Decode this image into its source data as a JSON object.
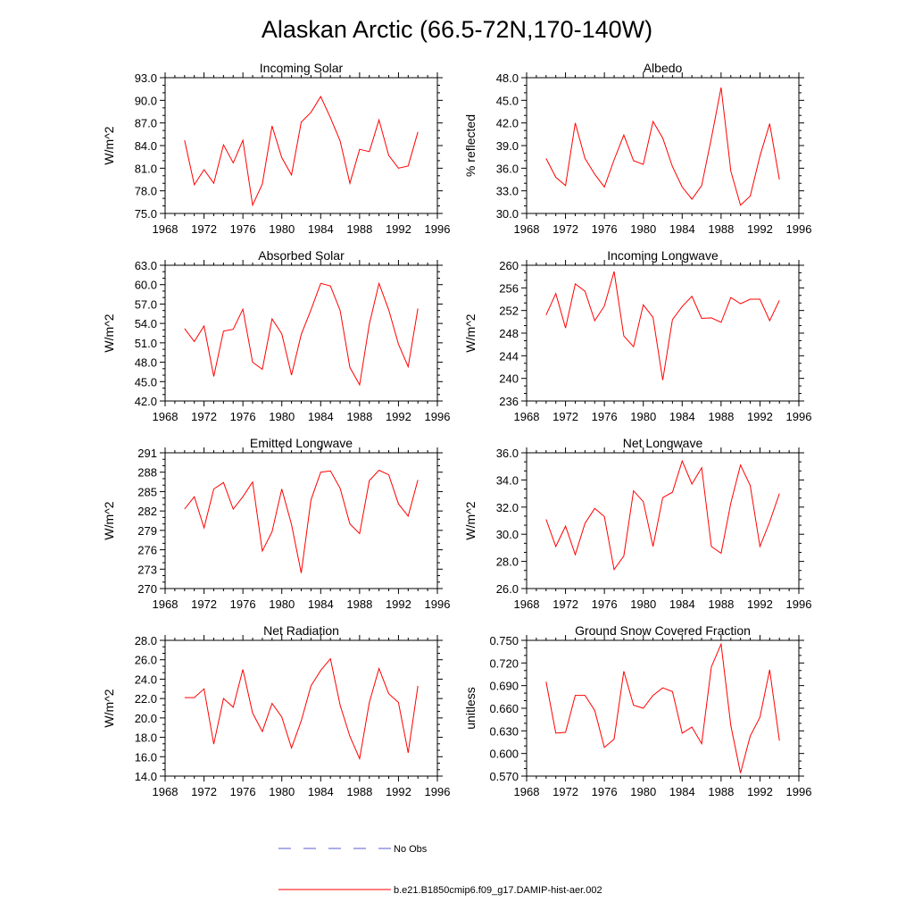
{
  "title": "Alaskan Arctic (66.5-72N,170-140W)",
  "legend": {
    "no_obs_label": "No Obs",
    "model_label": "b.e21.B1850cmip6.f09_g17.DAMIP-hist-aer.002",
    "no_obs_color": "#5b5bd6",
    "model_color": "#ff0000"
  },
  "chart_data": [
    {
      "type": "line",
      "title": "Incoming Solar",
      "ylabel": "W/m^2",
      "xlim": [
        1968,
        1996
      ],
      "ylim": [
        75,
        93
      ],
      "xticks": [
        "1968",
        "1972",
        "1976",
        "1980",
        "1984",
        "1988",
        "1992",
        "1996"
      ],
      "yticks": [
        "75.0",
        "78.0",
        "81.0",
        "84.0",
        "87.0",
        "90.0",
        "93.0"
      ],
      "x": [
        1970,
        1971,
        1972,
        1973,
        1974,
        1975,
        1976,
        1977,
        1978,
        1979,
        1980,
        1981,
        1982,
        1983,
        1984,
        1985,
        1986,
        1987,
        1988,
        1989,
        1990,
        1991,
        1992,
        1993,
        1994
      ],
      "series": [
        {
          "values": [
            84.7,
            78.8,
            80.8,
            79.0,
            84.1,
            81.7,
            84.7,
            76.1,
            78.9,
            86.6,
            82.4,
            80.1,
            87.1,
            88.4,
            90.5,
            87.7,
            84.6,
            79.0,
            83.5,
            83.2,
            87.4,
            82.7,
            81.0,
            81.3,
            85.8
          ]
        }
      ]
    },
    {
      "type": "line",
      "title": "Albedo",
      "ylabel": "% reflected",
      "xlim": [
        1968,
        1996
      ],
      "ylim": [
        30,
        48
      ],
      "xticks": [
        "1968",
        "1972",
        "1976",
        "1980",
        "1984",
        "1988",
        "1992",
        "1996"
      ],
      "yticks": [
        "30.0",
        "33.0",
        "36.0",
        "39.0",
        "42.0",
        "45.0",
        "48.0"
      ],
      "x": [
        1970,
        1971,
        1972,
        1973,
        1974,
        1975,
        1976,
        1977,
        1978,
        1979,
        1980,
        1981,
        1982,
        1983,
        1984,
        1985,
        1986,
        1987,
        1988,
        1989,
        1990,
        1991,
        1992,
        1993,
        1994
      ],
      "series": [
        {
          "values": [
            37.3,
            34.8,
            33.7,
            42.0,
            37.3,
            35.2,
            33.5,
            37.1,
            40.4,
            37.0,
            36.5,
            42.2,
            40.0,
            36.2,
            33.5,
            31.9,
            33.7,
            40.0,
            46.7,
            35.6,
            31.1,
            32.3,
            37.6,
            41.9,
            34.5
          ]
        }
      ]
    },
    {
      "type": "line",
      "title": "Absorbed Solar",
      "ylabel": "W/m^2",
      "xlim": [
        1968,
        1996
      ],
      "ylim": [
        42,
        63
      ],
      "xticks": [
        "1968",
        "1972",
        "1976",
        "1980",
        "1984",
        "1988",
        "1992",
        "1996"
      ],
      "yticks": [
        "42.0",
        "45.0",
        "48.0",
        "51.0",
        "54.0",
        "57.0",
        "60.0",
        "63.0"
      ],
      "x": [
        1970,
        1971,
        1972,
        1973,
        1974,
        1975,
        1976,
        1977,
        1978,
        1979,
        1980,
        1981,
        1982,
        1983,
        1984,
        1985,
        1986,
        1987,
        1988,
        1989,
        1990,
        1991,
        1992,
        1993,
        1994
      ],
      "series": [
        {
          "values": [
            53.2,
            51.2,
            53.6,
            45.8,
            52.8,
            53.1,
            56.2,
            48.0,
            46.9,
            54.7,
            52.4,
            46.0,
            52.3,
            56.1,
            60.2,
            59.8,
            56.0,
            47.2,
            44.5,
            53.9,
            60.2,
            56.1,
            50.8,
            47.3,
            56.3
          ]
        }
      ]
    },
    {
      "type": "line",
      "title": "Incoming Longwave",
      "ylabel": "W/m^2",
      "xlim": [
        1968,
        1996
      ],
      "ylim": [
        236,
        260
      ],
      "xticks": [
        "1968",
        "1972",
        "1976",
        "1980",
        "1984",
        "1988",
        "1992",
        "1996"
      ],
      "yticks": [
        "236",
        "240",
        "244",
        "248",
        "252",
        "256",
        "260"
      ],
      "x": [
        1970,
        1971,
        1972,
        1973,
        1974,
        1975,
        1976,
        1977,
        1978,
        1979,
        1980,
        1981,
        1982,
        1983,
        1984,
        1985,
        1986,
        1987,
        1988,
        1989,
        1990,
        1991,
        1992,
        1993,
        1994
      ],
      "series": [
        {
          "values": [
            251.2,
            255.0,
            248.9,
            256.7,
            255.4,
            250.2,
            252.8,
            258.9,
            247.5,
            245.6,
            253.0,
            250.8,
            239.7,
            250.4,
            252.7,
            254.5,
            250.6,
            250.7,
            249.9,
            254.3,
            253.2,
            254.0,
            254.0,
            250.2,
            253.8
          ]
        }
      ]
    },
    {
      "type": "line",
      "title": "Emitted Longwave",
      "ylabel": "W/m^2",
      "xlim": [
        1968,
        1996
      ],
      "ylim": [
        270,
        291
      ],
      "xticks": [
        "1968",
        "1972",
        "1976",
        "1980",
        "1984",
        "1988",
        "1992",
        "1996"
      ],
      "yticks": [
        "270",
        "273",
        "276",
        "279",
        "282",
        "285",
        "288",
        "291"
      ],
      "x": [
        1970,
        1971,
        1972,
        1973,
        1974,
        1975,
        1976,
        1977,
        1978,
        1979,
        1980,
        1981,
        1982,
        1983,
        1984,
        1985,
        1986,
        1987,
        1988,
        1989,
        1990,
        1991,
        1992,
        1993,
        1994
      ],
      "series": [
        {
          "values": [
            282.3,
            284.2,
            279.4,
            285.4,
            286.4,
            282.3,
            284.2,
            286.5,
            275.8,
            278.8,
            285.4,
            279.9,
            272.4,
            283.7,
            288.0,
            288.2,
            285.5,
            280.0,
            278.5,
            286.7,
            288.3,
            287.6,
            283.1,
            281.2,
            286.8
          ]
        }
      ]
    },
    {
      "type": "line",
      "title": "Net Longwave",
      "ylabel": "W/m^2",
      "xlim": [
        1968,
        1996
      ],
      "ylim": [
        26,
        36
      ],
      "xticks": [
        "1968",
        "1972",
        "1976",
        "1980",
        "1984",
        "1988",
        "1992",
        "1996"
      ],
      "yticks": [
        "26.0",
        "28.0",
        "30.0",
        "32.0",
        "34.0",
        "36.0"
      ],
      "x": [
        1970,
        1971,
        1972,
        1973,
        1974,
        1975,
        1976,
        1977,
        1978,
        1979,
        1980,
        1981,
        1982,
        1983,
        1984,
        1985,
        1986,
        1987,
        1988,
        1989,
        1990,
        1991,
        1992,
        1993,
        1994
      ],
      "series": [
        {
          "values": [
            31.1,
            29.1,
            30.6,
            28.5,
            30.8,
            31.9,
            31.3,
            27.4,
            28.4,
            33.2,
            32.4,
            29.1,
            32.7,
            33.1,
            35.4,
            33.7,
            34.9,
            29.1,
            28.6,
            32.3,
            35.1,
            33.6,
            29.1,
            30.9,
            33.0
          ]
        }
      ]
    },
    {
      "type": "line",
      "title": "Net Radiation",
      "ylabel": "W/m^2",
      "xlim": [
        1968,
        1996
      ],
      "ylim": [
        14,
        28
      ],
      "xticks": [
        "1968",
        "1972",
        "1976",
        "1980",
        "1984",
        "1988",
        "1992",
        "1996"
      ],
      "yticks": [
        "14.0",
        "16.0",
        "18.0",
        "20.0",
        "22.0",
        "24.0",
        "26.0",
        "28.0"
      ],
      "x": [
        1970,
        1971,
        1972,
        1973,
        1974,
        1975,
        1976,
        1977,
        1978,
        1979,
        1980,
        1981,
        1982,
        1983,
        1984,
        1985,
        1986,
        1987,
        1988,
        1989,
        1990,
        1991,
        1992,
        1993,
        1994
      ],
      "series": [
        {
          "values": [
            22.1,
            22.1,
            23.0,
            17.3,
            22.0,
            21.1,
            25.0,
            20.5,
            18.6,
            21.5,
            20.1,
            16.9,
            19.7,
            23.3,
            24.9,
            26.1,
            21.3,
            18.1,
            15.8,
            21.6,
            25.1,
            22.5,
            21.6,
            16.4,
            23.3
          ]
        }
      ]
    },
    {
      "type": "line",
      "title": "Ground Snow Covered Fraction",
      "ylabel": "unitless",
      "xlim": [
        1968,
        1996
      ],
      "ylim": [
        0.57,
        0.75
      ],
      "xticks": [
        "1968",
        "1972",
        "1976",
        "1980",
        "1984",
        "1988",
        "1992",
        "1996"
      ],
      "yticks": [
        "0.570",
        "0.600",
        "0.630",
        "0.660",
        "0.690",
        "0.720",
        "0.750"
      ],
      "x": [
        1970,
        1971,
        1972,
        1973,
        1974,
        1975,
        1976,
        1977,
        1978,
        1979,
        1980,
        1981,
        1982,
        1983,
        1984,
        1985,
        1986,
        1987,
        1988,
        1989,
        1990,
        1991,
        1992,
        1993,
        1994
      ],
      "series": [
        {
          "values": [
            0.695,
            0.627,
            0.628,
            0.677,
            0.677,
            0.657,
            0.608,
            0.619,
            0.709,
            0.664,
            0.66,
            0.677,
            0.687,
            0.682,
            0.627,
            0.635,
            0.613,
            0.715,
            0.745,
            0.637,
            0.574,
            0.623,
            0.648,
            0.711,
            0.617
          ]
        }
      ]
    }
  ]
}
